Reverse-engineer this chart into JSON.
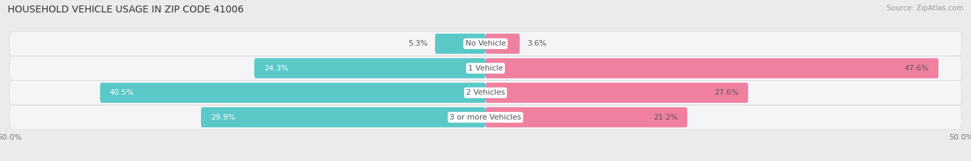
{
  "title": "HOUSEHOLD VEHICLE USAGE IN ZIP CODE 41006",
  "source": "Source: ZipAtlas.com",
  "categories": [
    "No Vehicle",
    "1 Vehicle",
    "2 Vehicles",
    "3 or more Vehicles"
  ],
  "owner_values": [
    5.3,
    24.3,
    40.5,
    29.9
  ],
  "renter_values": [
    3.6,
    47.6,
    27.6,
    21.2
  ],
  "owner_color": "#5BC8C8",
  "renter_color": "#F080A0",
  "background_color": "#EBEBEB",
  "row_bg_color": "#F5F5F7",
  "xlim": [
    -50,
    50
  ],
  "title_fontsize": 10,
  "source_fontsize": 7.5,
  "label_fontsize": 8,
  "cat_fontsize": 8,
  "bar_height": 0.82
}
